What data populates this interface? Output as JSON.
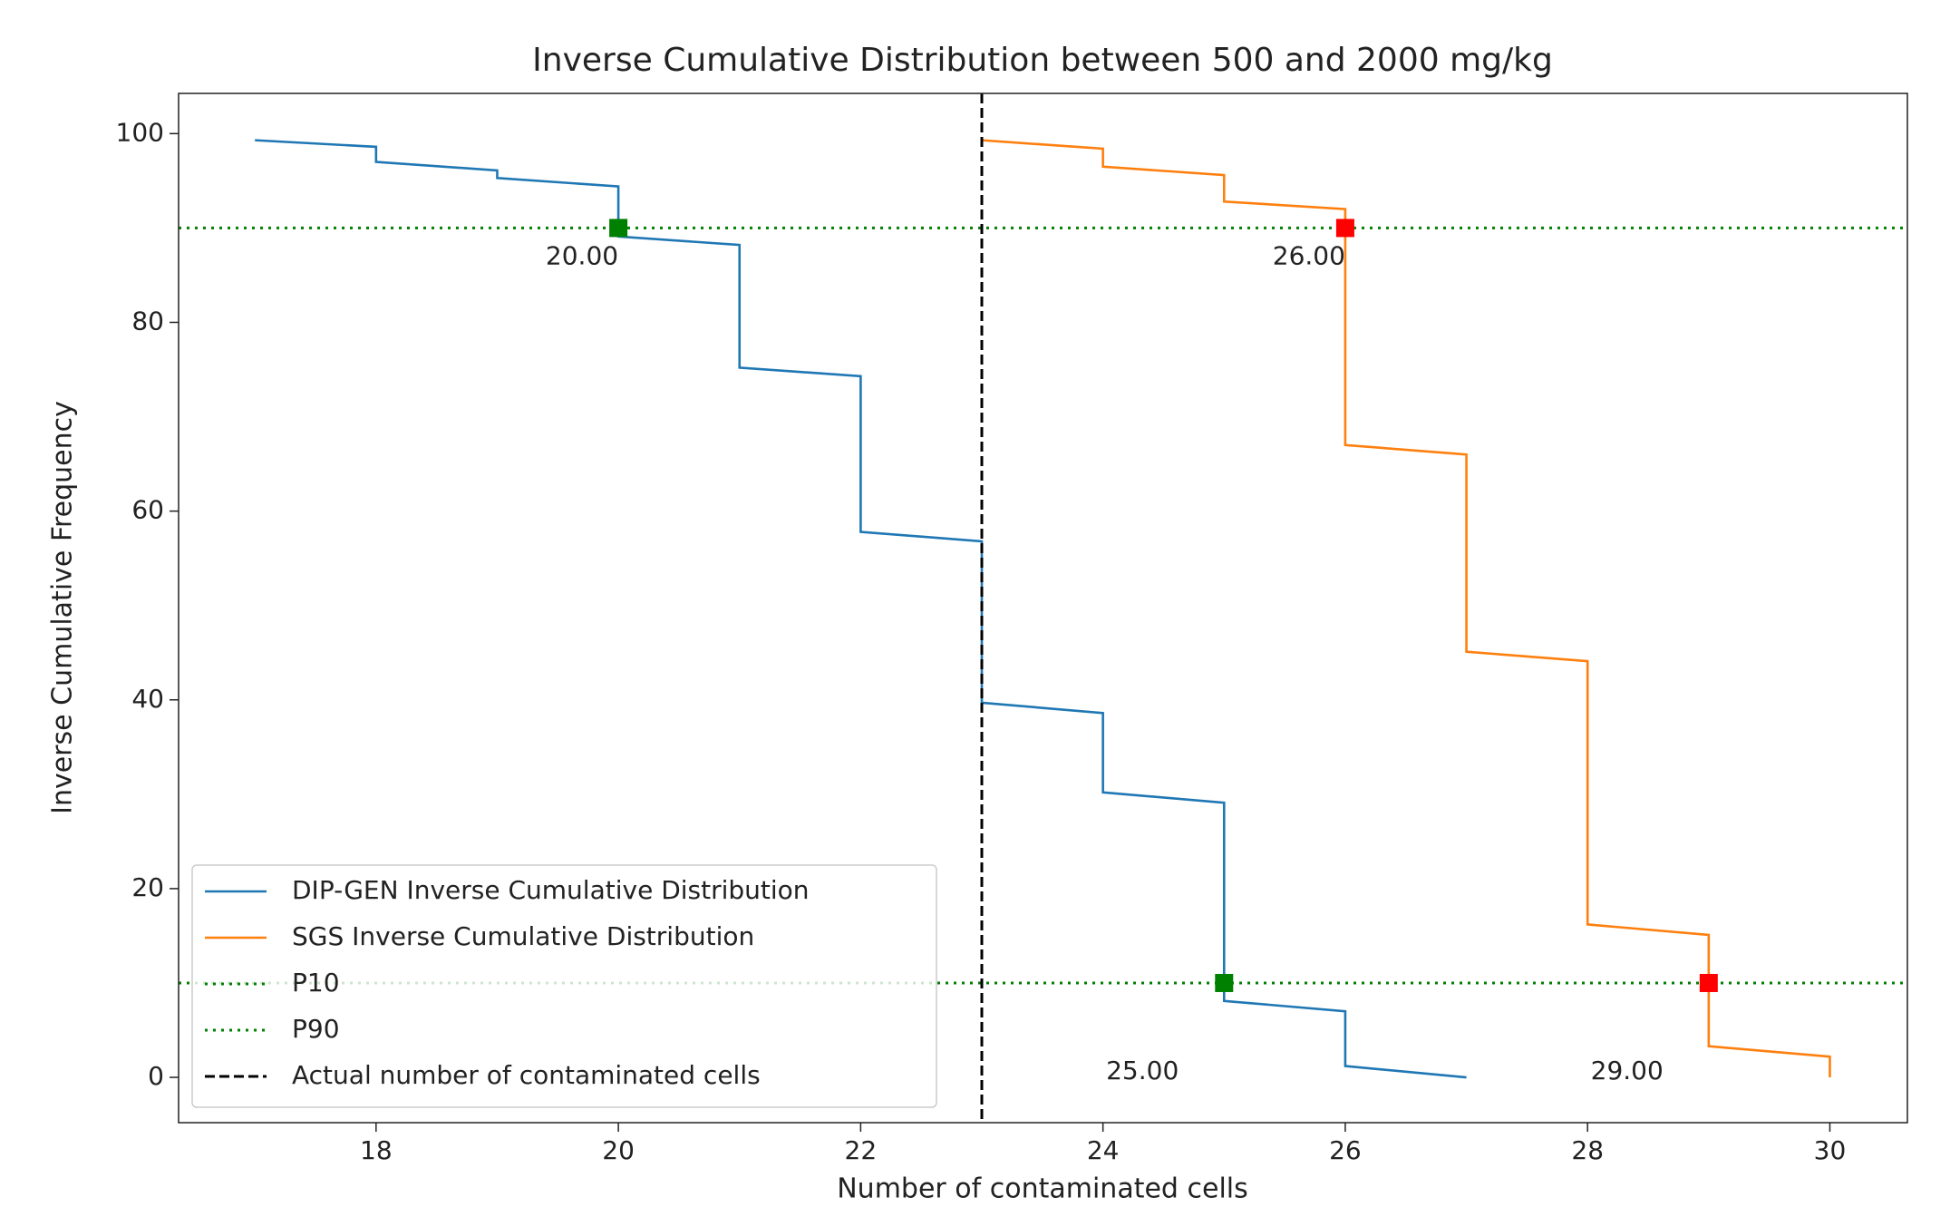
{
  "chart_data": {
    "type": "line",
    "title": "Inverse Cumulative Distribution between 500 and 2000 mg/kg",
    "x_label": "Number of contaminated cells",
    "y_label": "Inverse Cumulative Frequency",
    "xlim": [
      16.37,
      30.64
    ],
    "ylim": [
      -4.8,
      104.26
    ],
    "xticks": [
      18,
      20,
      22,
      24,
      26,
      28,
      30
    ],
    "yticks": [
      0,
      20,
      40,
      60,
      80,
      100
    ],
    "series": [
      {
        "name": "DIP-GEN Inverse Cumulative Distribution",
        "color": "#1f77b4",
        "x": [
          17,
          18,
          18,
          19,
          19,
          20,
          20,
          21,
          21,
          22,
          22,
          23,
          23,
          24,
          24,
          25,
          25,
          26,
          26,
          27
        ],
        "values": [
          99.3,
          98.6,
          97,
          96.1,
          95.3,
          94.4,
          89.1,
          88.2,
          75.2,
          74.3,
          57.8,
          56.8,
          39.7,
          38.6,
          30.2,
          29.1,
          8.1,
          7.0,
          1.2,
          0
        ]
      },
      {
        "name": "SGS Inverse Cumulative Distribution",
        "color": "#ff7f0e",
        "x": [
          23,
          24,
          24,
          25,
          25,
          26,
          26,
          27,
          27,
          28,
          28,
          29,
          29,
          30,
          30
        ],
        "values": [
          99.3,
          98.4,
          96.5,
          95.6,
          92.8,
          92.0,
          67.0,
          66.0,
          45.1,
          44.1,
          16.2,
          15.1,
          3.3,
          2.2,
          0
        ]
      }
    ],
    "hlines": [
      {
        "name": "P10",
        "value": 10,
        "color": "green"
      },
      {
        "name": "P90",
        "value": 90,
        "color": "green"
      }
    ],
    "vline": {
      "name": "Actual number of contaminated cells",
      "value": 23,
      "color": "black"
    },
    "markers": [
      {
        "x": 20,
        "y": 90,
        "label": "20.00",
        "color": "green"
      },
      {
        "x": 25,
        "y": 10,
        "label": "25.00",
        "color": "green"
      },
      {
        "x": 26,
        "y": 90,
        "label": "26.00",
        "color": "red"
      },
      {
        "x": 29,
        "y": 10,
        "label": "29.00",
        "color": "red"
      }
    ]
  }
}
